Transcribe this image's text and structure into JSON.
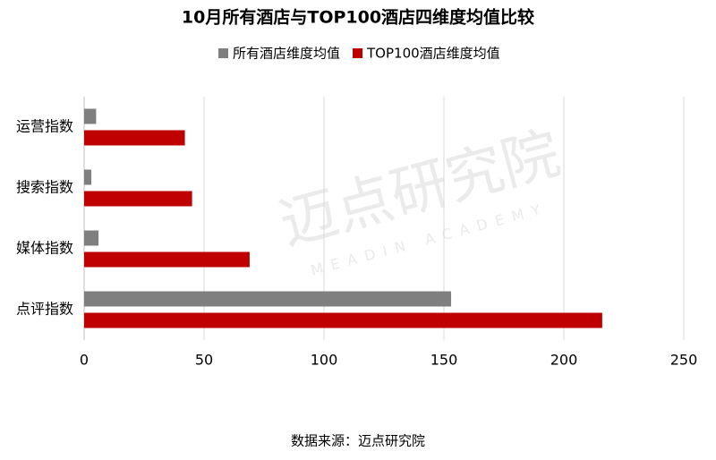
{
  "chart_data": {
    "type": "bar",
    "orientation": "horizontal",
    "title": "10月所有酒店与TOP100酒店四维度均值比较",
    "categories": [
      "运营指数",
      "搜索指数",
      "媒体指数",
      "点评指数"
    ],
    "series": [
      {
        "name": "所有酒店维度均值",
        "color": "#7f7f7f",
        "values": [
          5,
          3,
          6,
          153
        ]
      },
      {
        "name": "TOP100酒店维度均值",
        "color": "#c00000",
        "values": [
          42,
          45,
          69,
          216
        ]
      }
    ],
    "xlim": [
      0,
      250
    ],
    "xticks": [
      0,
      50,
      100,
      150,
      200,
      250
    ],
    "grid": true,
    "legend": "top",
    "watermark": "迈点研究院",
    "watermark_sub": "MEADIN ACADEMY",
    "source": "数据来源：迈点研究院"
  }
}
